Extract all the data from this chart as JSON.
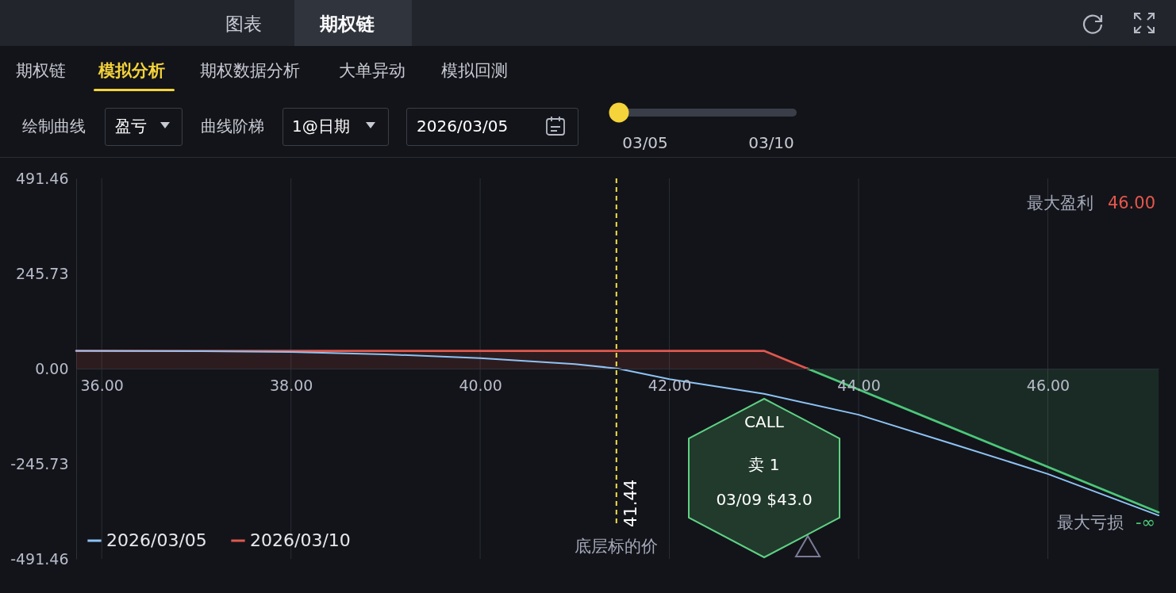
{
  "chart_data": [
    {
      "type": "other",
      "annotations": [
        "图表",
        "期权链",
        "期权链",
        "模拟分析",
        "期权数据分析",
        "大单异动",
        "模拟回测",
        "绘制曲线",
        "盈亏",
        "曲线阶梯",
        "1@日期",
        "2026/03/05",
        "03/05",
        "03/10"
      ]
    },
    {
      "type": "line",
      "xlim": [
        35.73,
        47.17
      ],
      "ylim": [
        -491.46,
        491.46
      ],
      "xticks": [
        {
          "value": 36,
          "label": "36.00"
        },
        {
          "value": 38,
          "label": "38.00"
        },
        {
          "value": 40,
          "label": "40.00"
        },
        {
          "value": 42,
          "label": "42.00"
        },
        {
          "value": 44,
          "label": "44.00"
        },
        {
          "value": 46,
          "label": "46.00"
        }
      ],
      "yticks": [
        {
          "value": -491.46,
          "label": "-491.46"
        },
        {
          "value": -245.73,
          "label": "-245.73"
        },
        {
          "value": 0,
          "label": "0.00"
        },
        {
          "value": 245.73,
          "label": "245.73"
        },
        {
          "value": 491.46,
          "label": "491.46"
        }
      ],
      "grid": "x",
      "legend": "bottom left",
      "series": [
        {
          "name": "2026/03/05",
          "color": "#8dc3f5",
          "x": [
            35.73,
            37,
            38,
            39,
            40,
            41,
            41.46,
            42,
            43,
            44,
            45,
            46,
            47.17
          ],
          "values": [
            46,
            45,
            43,
            37,
            27,
            12,
            0,
            -27,
            -65,
            -119,
            -195,
            -272,
            -379
          ]
        },
        {
          "name": "2026/03/10",
          "type": "area",
          "color": "#e0584f",
          "x": [
            35.73,
            43,
            43.46
          ],
          "values": [
            46,
            46,
            0
          ]
        },
        {
          "type": "area",
          "color": "#4cc77a",
          "x": [
            43.46,
            47.17
          ],
          "values": [
            0,
            -371
          ]
        }
      ],
      "ref_lines": [
        {
          "axis": "x",
          "value": 41.44,
          "label": "41.44",
          "color": "#f2e14a",
          "line_style": "dashed"
        }
      ],
      "annotations": [
        "最大盈利",
        "46.00",
        "最大亏损",
        "-∞",
        "底层标的价",
        "CALL",
        "卖 1",
        "03/09 $43.0"
      ]
    }
  ]
}
